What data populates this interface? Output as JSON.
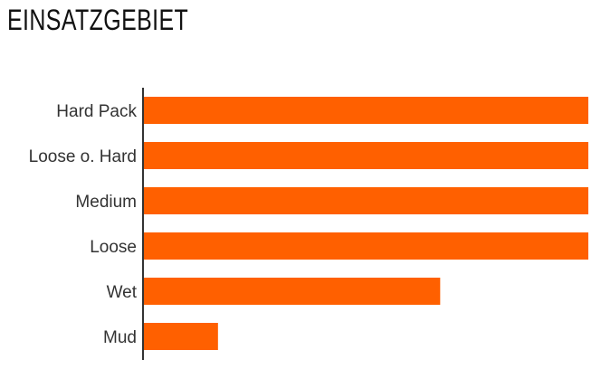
{
  "chart_data": {
    "type": "bar",
    "orientation": "horizontal",
    "title": "EINSATZGEBIET",
    "categories": [
      "Hard Pack",
      "Loose o. Hard",
      "Medium",
      "Loose",
      "Wet",
      "Mud"
    ],
    "values": [
      6,
      6,
      6,
      6,
      4,
      1
    ],
    "xlim": [
      0,
      6
    ],
    "grid": false,
    "bar_color": "#ff6000",
    "axis_color": "#333333"
  }
}
